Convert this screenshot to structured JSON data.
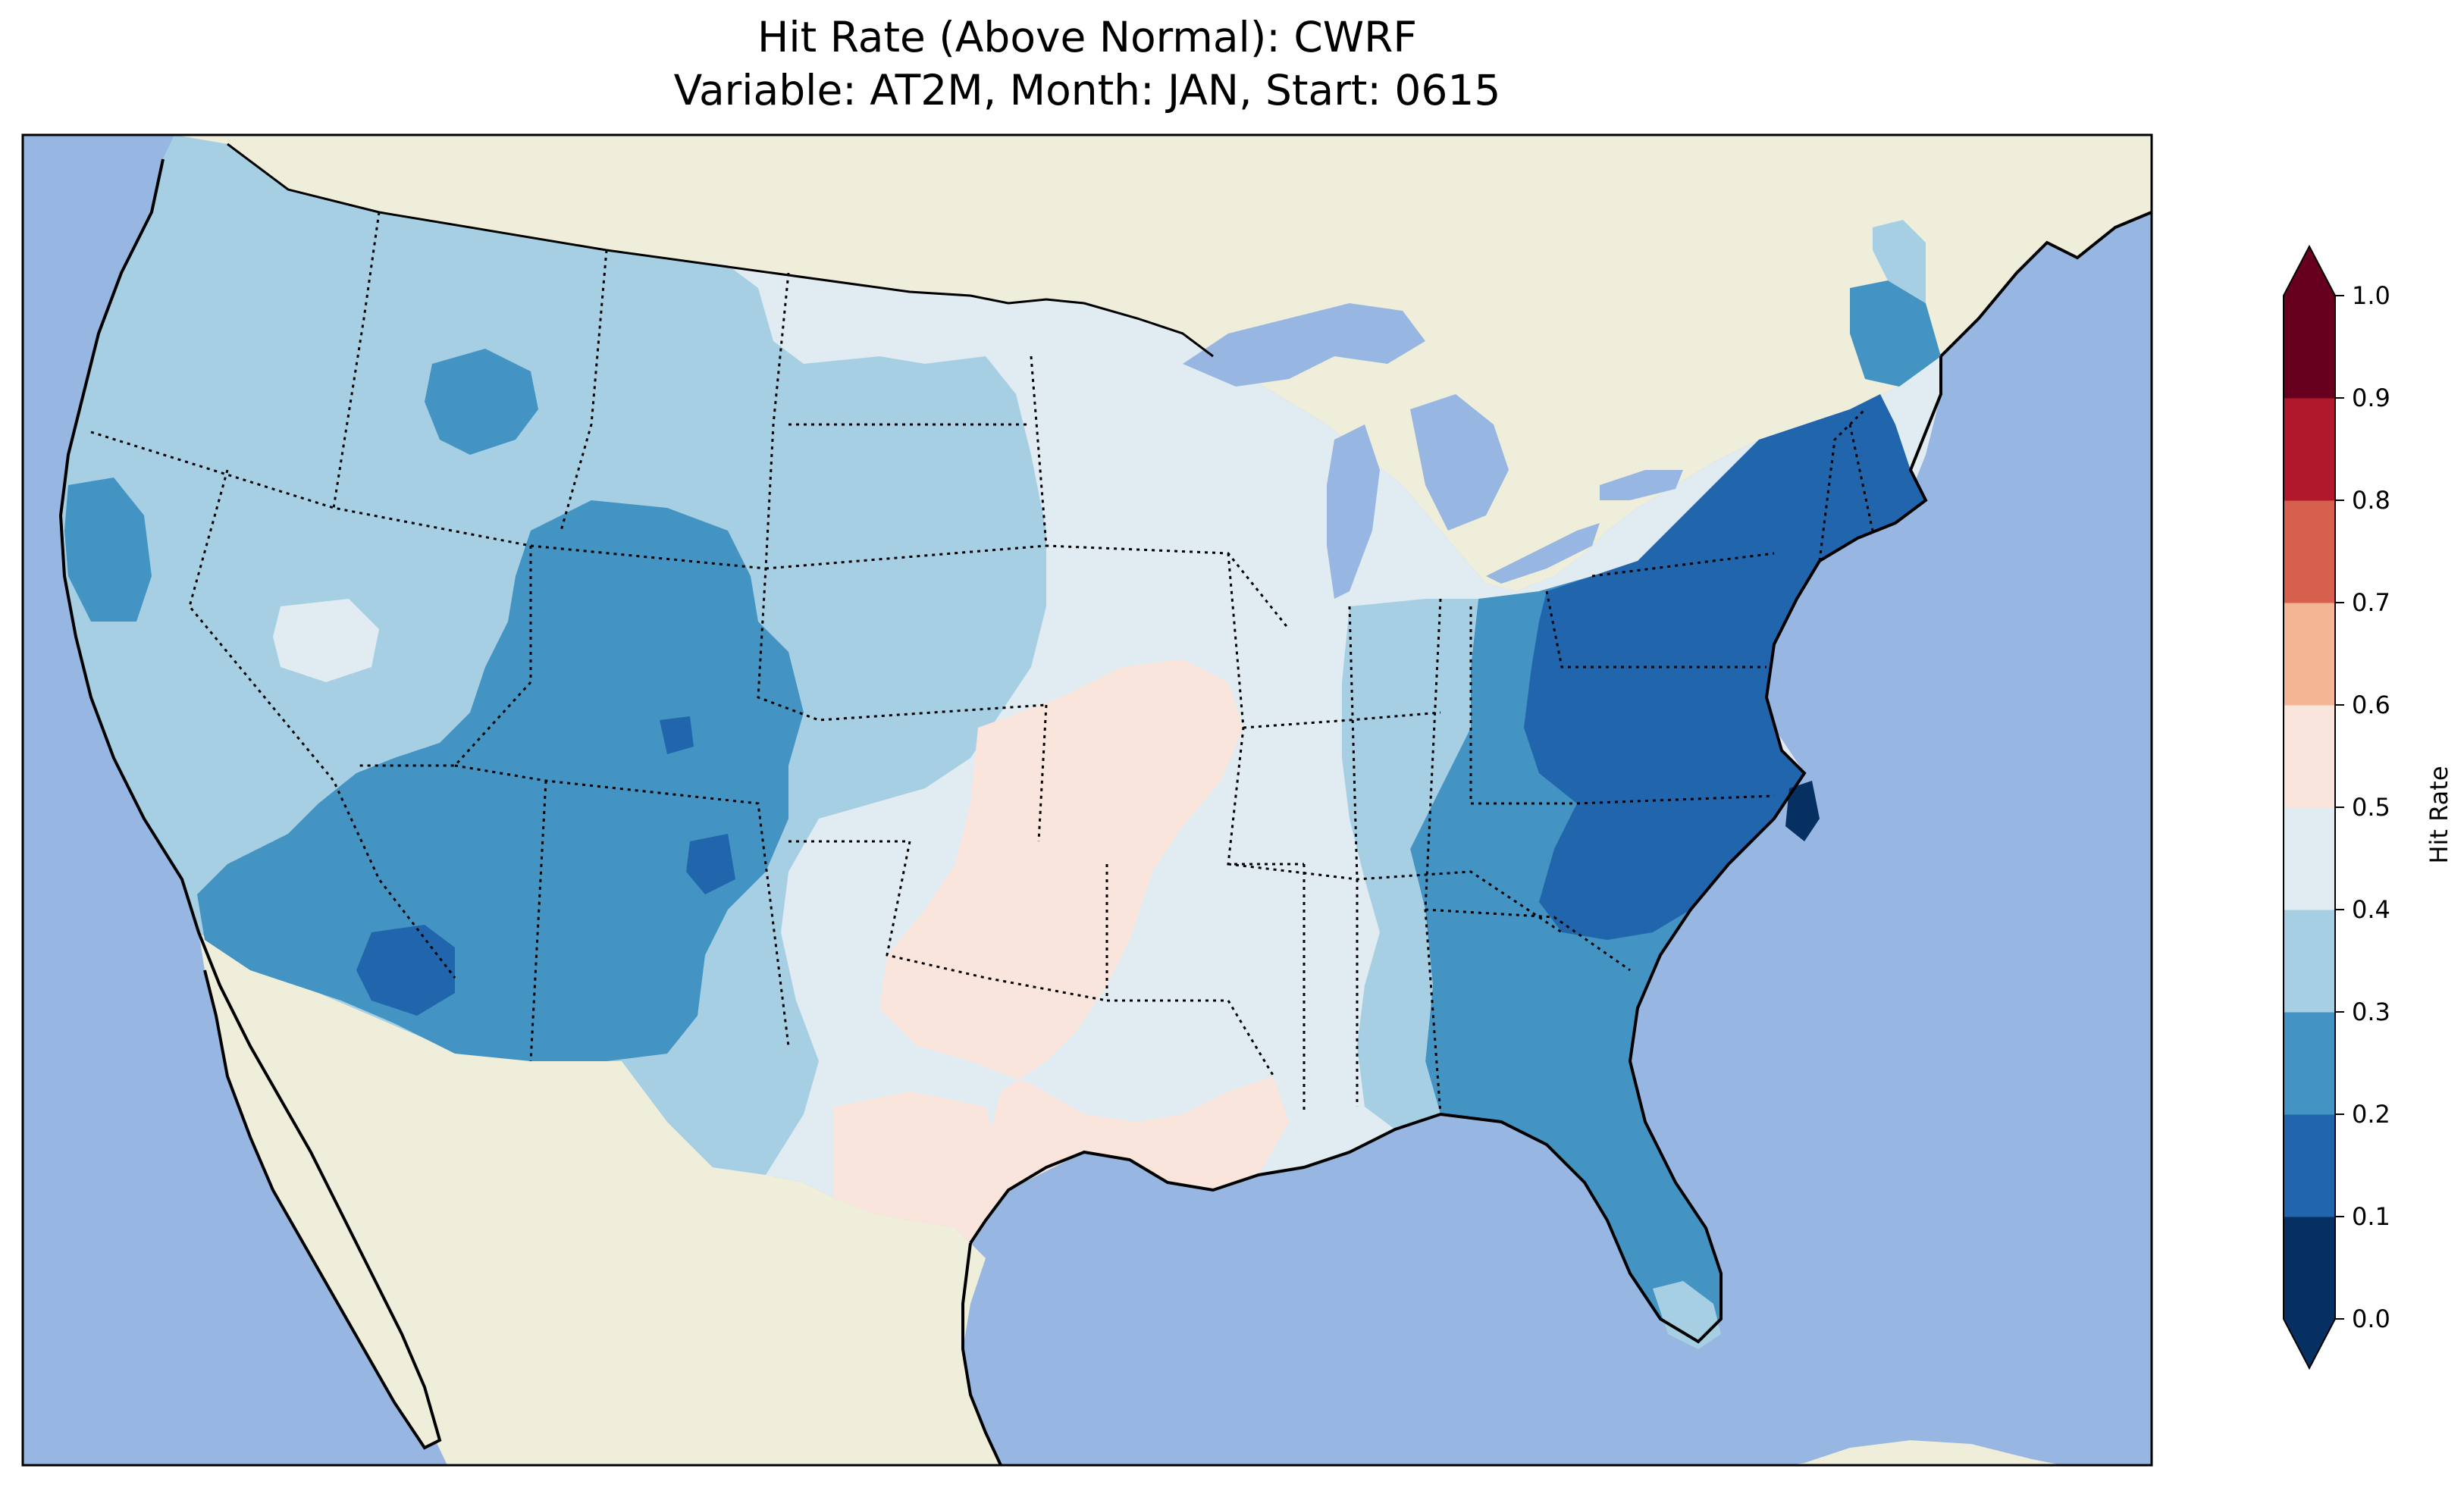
{
  "figure": {
    "title_line1": "Hit Rate (Above Normal): CWRF",
    "title_line2": "Variable: AT2M, Month: JAN, Start: 0615"
  },
  "colors": {
    "ocean": "#97b6e1",
    "land": "#efeedb",
    "coast": "#000000",
    "state_border": "#000000"
  },
  "colorbar": {
    "label": "Hit Rate",
    "ticks": [
      "0.0",
      "0.1",
      "0.2",
      "0.3",
      "0.4",
      "0.5",
      "0.6",
      "0.7",
      "0.8",
      "0.9",
      "1.0"
    ],
    "bins": [
      {
        "range": [
          0.0,
          0.1
        ],
        "color": "#053061"
      },
      {
        "range": [
          0.1,
          0.2
        ],
        "color": "#2166ac"
      },
      {
        "range": [
          0.2,
          0.3
        ],
        "color": "#4393c3"
      },
      {
        "range": [
          0.3,
          0.4
        ],
        "color": "#a6cfe3"
      },
      {
        "range": [
          0.4,
          0.5
        ],
        "color": "#e1ebf2"
      },
      {
        "range": [
          0.5,
          0.6
        ],
        "color": "#f9e5dc"
      },
      {
        "range": [
          0.6,
          0.7
        ],
        "color": "#f4b594"
      },
      {
        "range": [
          0.7,
          0.8
        ],
        "color": "#d6604d"
      },
      {
        "range": [
          0.8,
          0.9
        ],
        "color": "#b2182b"
      },
      {
        "range": [
          0.9,
          1.0
        ],
        "color": "#67001f"
      }
    ],
    "extend": "both"
  },
  "map_regions": [
    {
      "region": "West / Great Basin / Pacific",
      "hit_rate_bin": "0.3-0.4"
    },
    {
      "region": "Wyoming / Colorado / Arizona / New Mexico core",
      "hit_rate_bin": "0.2-0.3"
    },
    {
      "region": "Southern Arizona hotspot",
      "hit_rate_bin": "0.1-0.2"
    },
    {
      "region": "Central Plains / Midwest",
      "hit_rate_bin": "0.4-0.5"
    },
    {
      "region": "Texas / Oklahoma / Arkansas / Louisiana",
      "hit_rate_bin": "0.5-0.6"
    },
    {
      "region": "Southeast / Florida / Appalachia",
      "hit_rate_bin": "0.2-0.3"
    },
    {
      "region": "Mid-Atlantic / Northeast / Carolinas",
      "hit_rate_bin": "0.1-0.2"
    },
    {
      "region": "North Carolina coast",
      "hit_rate_bin": "0.0-0.1"
    }
  ]
}
